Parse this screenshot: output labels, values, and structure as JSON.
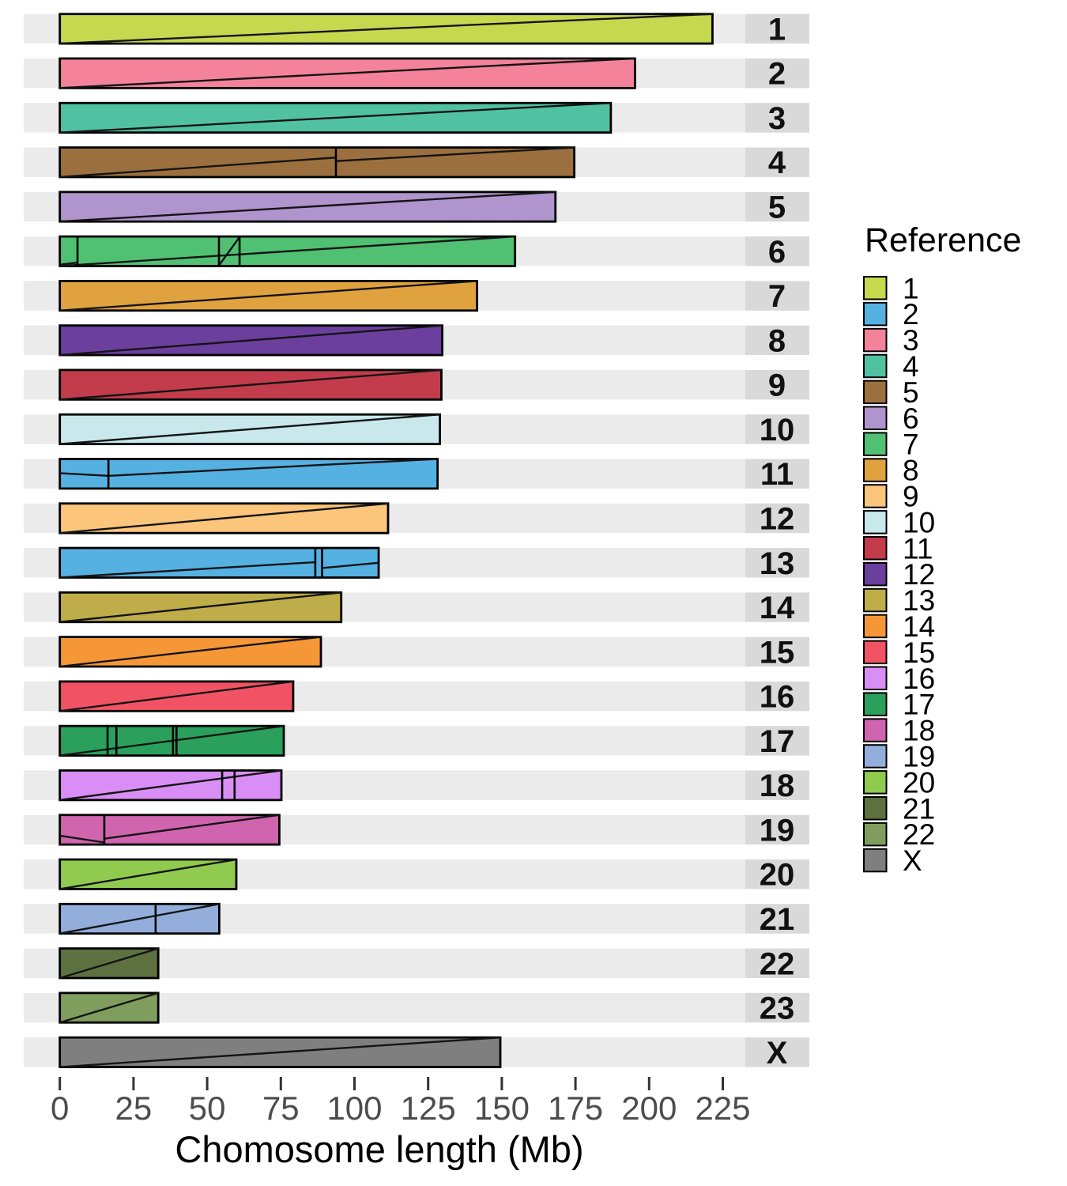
{
  "figure": {
    "axis_title": "Chomosome length (Mb)",
    "legend_title": "Reference",
    "band_color": "#ebebeb",
    "label_box_color": "#d9d9d9",
    "tick_color": "#333333",
    "tick_label_color": "#4d4d4d",
    "bar_outline_color": "#000000"
  },
  "chart_data": {
    "type": "bar",
    "orientation": "horizontal",
    "title": "",
    "xlabel": "Chomosome length (Mb)",
    "ylabel": "",
    "xlim": [
      0,
      240
    ],
    "xticks": [
      0,
      25,
      50,
      75,
      100,
      125,
      150,
      175,
      200,
      225
    ],
    "grid": false,
    "legend": {
      "title": "Reference",
      "position": "right",
      "entries": [
        {
          "label": "1",
          "color": "#c6d84e"
        },
        {
          "label": "2",
          "color": "#55b1e2"
        },
        {
          "label": "3",
          "color": "#f4829b"
        },
        {
          "label": "4",
          "color": "#50c2a2"
        },
        {
          "label": "5",
          "color": "#9c703e"
        },
        {
          "label": "6",
          "color": "#b094cd"
        },
        {
          "label": "7",
          "color": "#50c173"
        },
        {
          "label": "8",
          "color": "#e0a23e"
        },
        {
          "label": "9",
          "color": "#fcc57c"
        },
        {
          "label": "10",
          "color": "#c8e8ec"
        },
        {
          "label": "11",
          "color": "#c23c4c"
        },
        {
          "label": "12",
          "color": "#6b3f9d"
        },
        {
          "label": "13",
          "color": "#bfad4a"
        },
        {
          "label": "14",
          "color": "#f69737"
        },
        {
          "label": "15",
          "color": "#f25364"
        },
        {
          "label": "16",
          "color": "#d98ef5"
        },
        {
          "label": "17",
          "color": "#2aa05c"
        },
        {
          "label": "18",
          "color": "#d064ae"
        },
        {
          "label": "19",
          "color": "#93aedb"
        },
        {
          "label": "20",
          "color": "#90cb50"
        },
        {
          "label": "21",
          "color": "#5d7140"
        },
        {
          "label": "22",
          "color": "#7f9e5e"
        },
        {
          "label": "X",
          "color": "#7f7f7f"
        }
      ]
    },
    "rows": [
      {
        "label": "1",
        "reference": "1",
        "color": "#c6d84e",
        "length_mb": 221.5,
        "dividers_mb": [],
        "diagonals": [
          [
            0,
            0,
            221.5,
            1
          ]
        ]
      },
      {
        "label": "2",
        "reference": "3",
        "color": "#f4829b",
        "length_mb": 195.2,
        "dividers_mb": [],
        "diagonals": [
          [
            0,
            0,
            195.2,
            1
          ]
        ]
      },
      {
        "label": "3",
        "reference": "4",
        "color": "#50c2a2",
        "length_mb": 187.0,
        "dividers_mb": [],
        "diagonals": [
          [
            0,
            0,
            187.0,
            1
          ]
        ]
      },
      {
        "label": "4",
        "reference": "5",
        "color": "#9c703e",
        "length_mb": 174.6,
        "dividers_mb": [
          93.7
        ],
        "diagonals": [
          [
            0,
            0,
            93.7,
            0.66
          ],
          [
            93.7,
            0.54,
            174.6,
            1
          ]
        ]
      },
      {
        "label": "5",
        "reference": "6",
        "color": "#b094cd",
        "length_mb": 168.2,
        "dividers_mb": [],
        "diagonals": [
          [
            0,
            0,
            168.2,
            1
          ]
        ]
      },
      {
        "label": "6",
        "reference": "7",
        "color": "#50c173",
        "length_mb": 154.5,
        "dividers_mb": [
          6,
          54,
          61
        ],
        "diagonals": [
          [
            0,
            0,
            154.5,
            1
          ],
          [
            0,
            0.05,
            6,
            0.12
          ],
          [
            54,
            0.02,
            61,
            0.98
          ]
        ]
      },
      {
        "label": "7",
        "reference": "8",
        "color": "#e0a23e",
        "length_mb": 141.6,
        "dividers_mb": [],
        "diagonals": [
          [
            0,
            0,
            141.6,
            1
          ]
        ]
      },
      {
        "label": "8",
        "reference": "12",
        "color": "#6b3f9d",
        "length_mb": 129.8,
        "dividers_mb": [],
        "diagonals": [
          [
            0,
            0,
            129.8,
            1
          ]
        ]
      },
      {
        "label": "9",
        "reference": "11",
        "color": "#c23c4c",
        "length_mb": 129.5,
        "dividers_mb": [],
        "diagonals": [
          [
            0,
            0,
            129.5,
            1
          ]
        ]
      },
      {
        "label": "10",
        "reference": "10",
        "color": "#c8e8ec",
        "length_mb": 129.0,
        "dividers_mb": [],
        "diagonals": [
          [
            0,
            0,
            129.0,
            1
          ]
        ]
      },
      {
        "label": "11",
        "reference": "2",
        "color": "#55b1e2",
        "length_mb": 128.2,
        "dividers_mb": [
          16.5
        ],
        "diagonals": [
          [
            0,
            0.52,
            16.5,
            0.43
          ],
          [
            16.5,
            0.43,
            128.2,
            1
          ]
        ]
      },
      {
        "label": "12",
        "reference": "9",
        "color": "#fcc57c",
        "length_mb": 111.4,
        "dividers_mb": [],
        "diagonals": [
          [
            0,
            0,
            111.4,
            1
          ]
        ]
      },
      {
        "label": "13",
        "reference": "2",
        "color": "#55b1e2",
        "length_mb": 108.2,
        "dividers_mb": [
          86.7,
          89.0
        ],
        "diagonals": [
          [
            0,
            0,
            86.7,
            0.52
          ],
          [
            89.0,
            0.32,
            108.2,
            0.5
          ]
        ]
      },
      {
        "label": "14",
        "reference": "13",
        "color": "#bfad4a",
        "length_mb": 95.5,
        "dividers_mb": [],
        "diagonals": [
          [
            0,
            0,
            95.5,
            1
          ]
        ]
      },
      {
        "label": "15",
        "reference": "14",
        "color": "#f69737",
        "length_mb": 88.6,
        "dividers_mb": [],
        "diagonals": [
          [
            0,
            0,
            88.6,
            1
          ]
        ]
      },
      {
        "label": "16",
        "reference": "15",
        "color": "#f25364",
        "length_mb": 79.2,
        "dividers_mb": [],
        "diagonals": [
          [
            0,
            0,
            79.2,
            1
          ]
        ]
      },
      {
        "label": "17",
        "reference": "17",
        "color": "#2aa05c",
        "length_mb": 76.0,
        "dividers_mb": [
          16.2,
          19.2,
          38.4,
          39.6
        ],
        "diagonals": [
          [
            0,
            0,
            76.0,
            1
          ]
        ]
      },
      {
        "label": "18",
        "reference": "16",
        "color": "#d98ef5",
        "length_mb": 75.2,
        "dividers_mb": [
          55.1,
          59.3
        ],
        "diagonals": [
          [
            0,
            0,
            75.2,
            1
          ]
        ]
      },
      {
        "label": "19",
        "reference": "18",
        "color": "#d064ae",
        "length_mb": 74.5,
        "dividers_mb": [
          15.1
        ],
        "diagonals": [
          [
            0,
            0.3,
            15.1,
            0.07
          ],
          [
            15.1,
            0.2,
            74.5,
            1
          ]
        ]
      },
      {
        "label": "20",
        "reference": "20",
        "color": "#90cb50",
        "length_mb": 59.9,
        "dividers_mb": [],
        "diagonals": [
          [
            0,
            0,
            59.9,
            1
          ]
        ]
      },
      {
        "label": "21",
        "reference": "19",
        "color": "#93aedb",
        "length_mb": 54.1,
        "dividers_mb": [
          32.5
        ],
        "diagonals": [
          [
            0,
            0,
            54.1,
            1
          ]
        ]
      },
      {
        "label": "22",
        "reference": "21",
        "color": "#5d7140",
        "length_mb": 33.4,
        "dividers_mb": [],
        "diagonals": [
          [
            0,
            0,
            33.4,
            1
          ]
        ]
      },
      {
        "label": "23",
        "reference": "22",
        "color": "#7f9e5e",
        "length_mb": 33.4,
        "dividers_mb": [],
        "diagonals": [
          [
            0,
            0,
            33.4,
            1
          ]
        ]
      },
      {
        "label": "X",
        "reference": "X",
        "color": "#7f7f7f",
        "length_mb": 149.5,
        "dividers_mb": [],
        "diagonals": [
          [
            0,
            0,
            149.5,
            1
          ]
        ]
      }
    ]
  }
}
